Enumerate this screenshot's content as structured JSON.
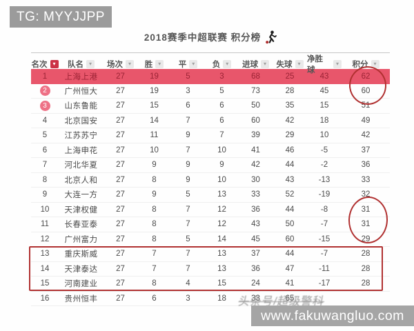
{
  "watermarks": {
    "tg": "TG: MYYJJPP",
    "site": "www.fakuwangluo.com",
    "toutiao": "头条号/超级警科"
  },
  "title": "2018赛季中超联赛 积分榜",
  "icons": {
    "filter_caret": "▾",
    "player": "soccer-player-kicking-ball"
  },
  "table": {
    "columns": [
      {
        "key": "rank",
        "label": "名次",
        "filter_style": "active-red"
      },
      {
        "key": "team",
        "label": "队名",
        "filter_style": "default"
      },
      {
        "key": "played",
        "label": "场次",
        "filter_style": "default"
      },
      {
        "key": "win",
        "label": "胜",
        "filter_style": "default"
      },
      {
        "key": "draw",
        "label": "平",
        "filter_style": "default"
      },
      {
        "key": "loss",
        "label": "负",
        "filter_style": "default"
      },
      {
        "key": "goals-for",
        "label": "进球",
        "filter_style": "default"
      },
      {
        "key": "goals-against",
        "label": "失球",
        "filter_style": "default"
      },
      {
        "key": "goal-diff",
        "label": "净胜球",
        "filter_style": "default"
      },
      {
        "key": "points",
        "label": "积分",
        "filter_style": "default"
      }
    ],
    "rows": [
      {
        "cells": [
          "1",
          "上海上港",
          "27",
          "19",
          "5",
          "3",
          "68",
          "25",
          "43",
          "62"
        ],
        "style": "highlight"
      },
      {
        "cells": [
          "2",
          "广州恒大",
          "27",
          "19",
          "3",
          "5",
          "73",
          "28",
          "45",
          "60"
        ],
        "style": "badge"
      },
      {
        "cells": [
          "3",
          "山东鲁能",
          "27",
          "15",
          "6",
          "6",
          "50",
          "35",
          "15",
          "51"
        ],
        "style": "badge"
      },
      {
        "cells": [
          "4",
          "北京国安",
          "27",
          "14",
          "7",
          "6",
          "60",
          "42",
          "18",
          "49"
        ],
        "style": ""
      },
      {
        "cells": [
          "5",
          "江苏苏宁",
          "27",
          "11",
          "9",
          "7",
          "39",
          "29",
          "10",
          "42"
        ],
        "style": ""
      },
      {
        "cells": [
          "6",
          "上海申花",
          "27",
          "10",
          "7",
          "10",
          "41",
          "46",
          "-5",
          "37"
        ],
        "style": ""
      },
      {
        "cells": [
          "7",
          "河北华夏",
          "27",
          "9",
          "9",
          "9",
          "42",
          "44",
          "-2",
          "36"
        ],
        "style": ""
      },
      {
        "cells": [
          "8",
          "北京人和",
          "27",
          "8",
          "9",
          "10",
          "30",
          "43",
          "-13",
          "33"
        ],
        "style": ""
      },
      {
        "cells": [
          "9",
          "大连一方",
          "27",
          "9",
          "5",
          "13",
          "33",
          "52",
          "-19",
          "32"
        ],
        "style": ""
      },
      {
        "cells": [
          "10",
          "天津权健",
          "27",
          "8",
          "7",
          "12",
          "36",
          "44",
          "-8",
          "31"
        ],
        "style": ""
      },
      {
        "cells": [
          "11",
          "长春亚泰",
          "27",
          "8",
          "7",
          "12",
          "43",
          "50",
          "-7",
          "31"
        ],
        "style": ""
      },
      {
        "cells": [
          "12",
          "广州富力",
          "27",
          "8",
          "5",
          "14",
          "45",
          "60",
          "-15",
          "29"
        ],
        "style": ""
      },
      {
        "cells": [
          "13",
          "重庆斯威",
          "27",
          "7",
          "7",
          "13",
          "37",
          "44",
          "-7",
          "28"
        ],
        "style": ""
      },
      {
        "cells": [
          "14",
          "天津泰达",
          "27",
          "7",
          "7",
          "13",
          "36",
          "47",
          "-11",
          "28"
        ],
        "style": ""
      },
      {
        "cells": [
          "15",
          "河南建业",
          "27",
          "8",
          "4",
          "15",
          "24",
          "41",
          "-17",
          "28"
        ],
        "style": ""
      },
      {
        "cells": [
          "16",
          "贵州恒丰",
          "27",
          "6",
          "3",
          "18",
          "33",
          "65",
          "",
          ""
        ],
        "style": ""
      }
    ]
  },
  "annotations": {
    "circle_top": "points 62 and 60 circled in red",
    "circle_mid": "points 31, 31, 29 circled in red",
    "box_relegation": "rows 13-15 boxed in red"
  },
  "colors": {
    "highlight_row_bg": "#e8566b",
    "highlight_row_text": "#9b2335",
    "badge_bg": "#ee7186",
    "header_filter_active": "#cb3146",
    "annotation": "#b03030",
    "watermark_box": "#a5a5a5"
  }
}
